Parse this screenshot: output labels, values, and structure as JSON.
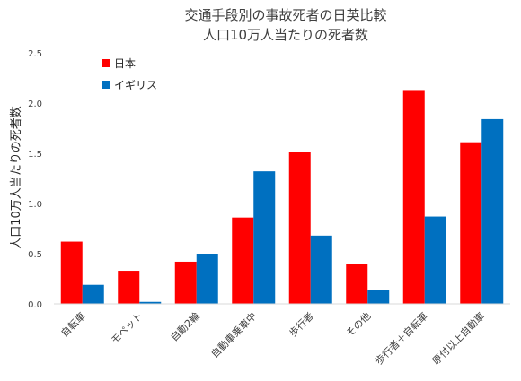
{
  "chart_data": {
    "type": "bar",
    "title": "交通手段別の事故死者の日英比較",
    "subtitle": "人口10万人当たりの死者数",
    "ylabel": "人口10万人当たりの死者数",
    "xlabel": "",
    "ylim": [
      0,
      2.5
    ],
    "yticks": [
      "0.0",
      "0.5",
      "1.0",
      "1.5",
      "2.0",
      "2.5"
    ],
    "grid": false,
    "legend_position": "top-left",
    "categories": [
      "自転車",
      "モペット",
      "自動2輪",
      "自動車乗車中",
      "歩行者",
      "その他",
      "歩行者＋自転車",
      "原付以上自動車"
    ],
    "series": [
      {
        "name": "日本",
        "color": "#ff0000",
        "values": [
          0.62,
          0.33,
          0.42,
          0.86,
          1.51,
          0.4,
          2.13,
          1.61
        ]
      },
      {
        "name": "イギリス",
        "color": "#0070c0",
        "values": [
          0.19,
          0.02,
          0.5,
          1.32,
          0.68,
          0.14,
          0.87,
          1.84
        ]
      }
    ]
  }
}
